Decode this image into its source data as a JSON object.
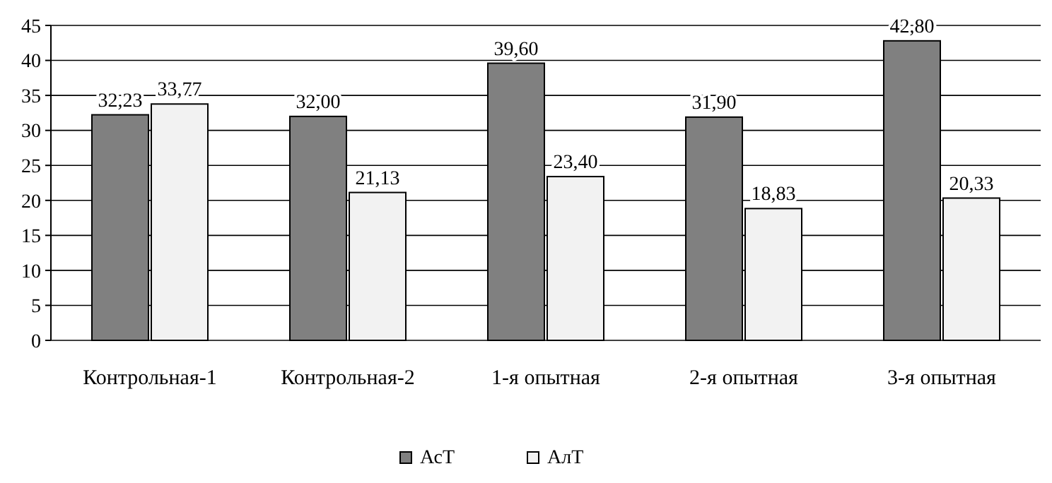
{
  "chart_data": {
    "type": "bar",
    "categories": [
      "Контрольная-1",
      "Контрольная-2",
      "1-я опытная",
      "2-я опытная",
      "3-я опытная"
    ],
    "series": [
      {
        "name": "АсТ",
        "color": "#808080",
        "values": [
          32.23,
          32.0,
          39.6,
          31.9,
          42.8
        ],
        "value_labels": [
          "32,23",
          "32,00",
          "39,60",
          "31,90",
          "42,80"
        ]
      },
      {
        "name": "АлТ",
        "color": "#f2f2f2",
        "values": [
          33.77,
          21.13,
          23.4,
          18.83,
          20.33
        ],
        "value_labels": [
          "33,77",
          "21,13",
          "23,40",
          "18,83",
          "20,33"
        ]
      }
    ],
    "ylim": [
      0,
      45
    ],
    "yticks": [
      0,
      5,
      10,
      15,
      20,
      25,
      30,
      35,
      40,
      45
    ],
    "grid": "y",
    "legend": "bottom"
  }
}
